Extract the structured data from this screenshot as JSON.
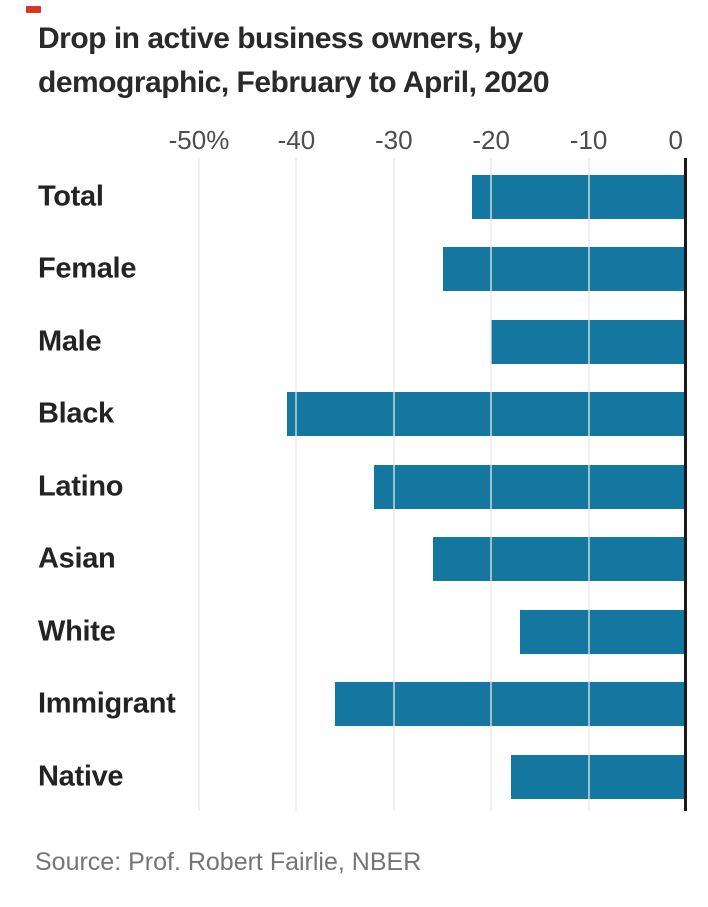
{
  "page": {
    "title_line1": "Drop in active business owners, by",
    "title_line2": "demographic, February to April, 2020",
    "source": "Source: Prof. Robert Fairlie, NBER"
  },
  "colors": {
    "bar": "#1377a0",
    "grid_over": "rgba(230,230,230,0.65)",
    "grid_base": "#e6e6e6",
    "axis": "#1a1a1a",
    "kicker_red": "#da3327",
    "title_text": "#2a2a2a",
    "category_text": "#232323",
    "tick_text": "#4d4d4d",
    "source_text": "#757575"
  },
  "chart_data": {
    "type": "bar",
    "orientation": "horizontal",
    "title": "Drop in active business owners, by demographic, February to April, 2020",
    "unit": "%",
    "categories": [
      "Total",
      "Female",
      "Male",
      "Black",
      "Latino",
      "Asian",
      "White",
      "Immigrant",
      "Native"
    ],
    "values": [
      -22,
      -25,
      -20,
      -41,
      -32,
      -26,
      -17,
      -36,
      -18
    ],
    "xlim": [
      -50,
      0
    ],
    "x_ticks": [
      {
        "label": "-50%",
        "value": -50
      },
      {
        "label": "-40",
        "value": -40
      },
      {
        "label": "-30",
        "value": -30
      },
      {
        "label": "-20",
        "value": -20
      },
      {
        "label": "-10",
        "value": -10
      },
      {
        "label": "0",
        "value": 0
      }
    ],
    "grid": true,
    "legend": "none",
    "source": "Source: Prof. Robert Fairlie, NBER"
  }
}
